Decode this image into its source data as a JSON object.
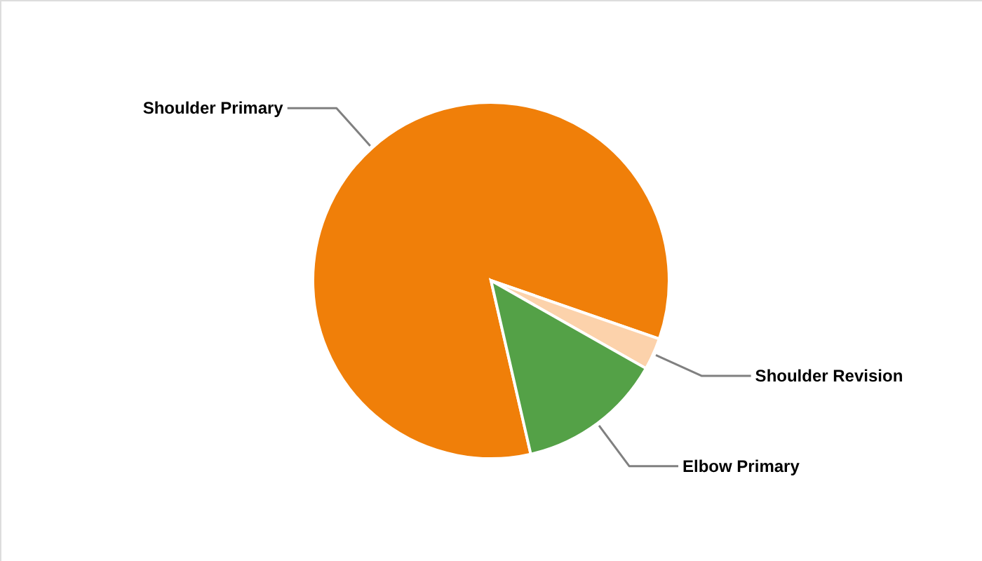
{
  "chart_data": {
    "type": "pie",
    "categories": [
      "Shoulder Primary",
      "Shoulder Revision",
      "Elbow Primary"
    ],
    "values": [
      83.9,
      2.9,
      13.2
    ],
    "colors": [
      "#f07f09",
      "#fcd2ab",
      "#54a147"
    ]
  }
}
